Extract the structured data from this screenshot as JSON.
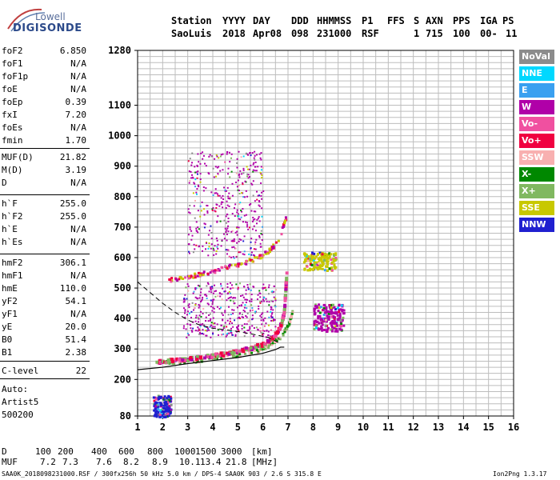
{
  "logo": {
    "top": "Lowell",
    "bottom": "DIGISONDE"
  },
  "header": {
    "row1": [
      "Station",
      "YYYY",
      "DAY",
      "DDD",
      "HHMMSS",
      "P1",
      "FFS",
      "S",
      "AXN",
      "PPS",
      "IGA",
      "PS"
    ],
    "row2": [
      "SaoLuis",
      "2018",
      "Apr08",
      "098",
      "231000",
      "RSF",
      "1",
      "715",
      "100",
      "00-",
      "11"
    ]
  },
  "params": [
    {
      "name": "foF2",
      "value": "6.850"
    },
    {
      "name": "foF1",
      "value": "N/A"
    },
    {
      "name": "foF1p",
      "value": "N/A"
    },
    {
      "name": "foE",
      "value": "N/A"
    },
    {
      "name": "foEp",
      "value": "0.39"
    },
    {
      "name": "fxI",
      "value": "7.20"
    },
    {
      "name": "foEs",
      "value": "N/A"
    },
    {
      "name": "fmin",
      "value": "1.70"
    },
    {
      "name": "MUF(D)",
      "value": "21.82"
    },
    {
      "name": "M(D)",
      "value": "3.19"
    },
    {
      "name": "D",
      "value": "N/A"
    },
    {
      "name": "h`F",
      "value": "255.0"
    },
    {
      "name": "h`F2",
      "value": "255.0"
    },
    {
      "name": "h`E",
      "value": "N/A"
    },
    {
      "name": "h`Es",
      "value": "N/A"
    },
    {
      "name": "hmF2",
      "value": "306.1"
    },
    {
      "name": "hmF1",
      "value": "N/A"
    },
    {
      "name": "hmE",
      "value": "110.0"
    },
    {
      "name": "yF2",
      "value": "54.1"
    },
    {
      "name": "yF1",
      "value": "N/A"
    },
    {
      "name": "yE",
      "value": "20.0"
    },
    {
      "name": "B0",
      "value": "51.4"
    },
    {
      "name": "B1",
      "value": "2.38"
    },
    {
      "name": "C-level",
      "value": "22"
    }
  ],
  "auto": [
    "Auto:",
    "Artist5",
    "500200"
  ],
  "legend": [
    {
      "label": "NoVal",
      "color": "#8c8c8c"
    },
    {
      "label": "NNE",
      "color": "#00d8ff"
    },
    {
      "label": "E",
      "color": "#3aa0f0"
    },
    {
      "label": "W",
      "color": "#b000a8"
    },
    {
      "label": "Vo-",
      "color": "#f050a0"
    },
    {
      "label": "Vo+",
      "color": "#f00040"
    },
    {
      "label": "SSW",
      "color": "#f8b0b0"
    },
    {
      "label": "X-",
      "color": "#008800"
    },
    {
      "label": "X+",
      "color": "#80b860"
    },
    {
      "label": "SSE",
      "color": "#c8c800"
    },
    {
      "label": "NNW",
      "color": "#2020d0"
    }
  ],
  "muf_table": {
    "d_label": "D",
    "muf_label": "MUF",
    "d_values": [
      "100",
      "200",
      "400",
      "600",
      "800",
      "1000",
      "1500",
      "3000"
    ],
    "d_unit": "[km]",
    "muf_values": [
      "7.2",
      "7.3",
      "7.6",
      "8.2",
      "8.9",
      "10.1",
      "13.4",
      "21.8"
    ],
    "muf_unit": "[MHz]"
  },
  "footer": {
    "left": "SAA0K_2018098231000.RSF / 300fx256h 50 kHz 5.0 km / DPS-4 SAA0K 903 / 2.6 S 315.8 E",
    "right": "Ion2Png 1.3.17"
  },
  "chart_data": {
    "type": "scatter",
    "title": "",
    "xlabel": "",
    "ylabel": "",
    "xlim": [
      1,
      16
    ],
    "ylim": [
      80,
      1280
    ],
    "x_ticks": [
      1,
      2,
      3,
      4,
      5,
      6,
      7,
      8,
      9,
      10,
      11,
      12,
      13,
      14,
      15,
      16
    ],
    "y_ticks": [
      80,
      200,
      300,
      400,
      500,
      600,
      700,
      800,
      900,
      1000,
      1100,
      1280
    ],
    "grid": true,
    "trace_o": {
      "x": [
        1.7,
        2.0,
        2.5,
        3.0,
        3.5,
        4.0,
        4.5,
        5.0,
        5.5,
        6.0,
        6.3,
        6.5,
        6.7,
        6.8,
        6.85,
        6.9
      ],
      "y": [
        262,
        264,
        268,
        272,
        278,
        283,
        290,
        298,
        308,
        322,
        338,
        358,
        390,
        430,
        500,
        560
      ]
    },
    "trace_o_multihop": {
      "x": [
        2.2,
        2.8,
        3.4,
        4.0,
        4.6,
        5.2,
        5.8,
        6.2,
        6.6,
        6.9
      ],
      "y": [
        530,
        538,
        548,
        558,
        572,
        586,
        604,
        625,
        660,
        740
      ]
    },
    "trace_x": {
      "x": [
        2.0,
        3.0,
        4.0,
        5.0,
        5.8,
        6.3,
        6.7,
        7.0,
        7.15
      ],
      "y": [
        258,
        262,
        270,
        282,
        298,
        318,
        345,
        385,
        430
      ]
    },
    "profile_solid": {
      "x": [
        1.0,
        2.0,
        3.0,
        4.0,
        5.0,
        6.0,
        6.5,
        6.7,
        6.85
      ],
      "y": [
        232,
        240,
        252,
        262,
        272,
        286,
        298,
        306,
        306
      ]
    },
    "profile_dashed": {
      "x": [
        1.0,
        1.5,
        2.0,
        2.5,
        3.0,
        3.5,
        4.0,
        4.8,
        5.5,
        6.2,
        6.7
      ],
      "y": [
        520,
        485,
        450,
        420,
        395,
        378,
        368,
        360,
        350,
        338,
        318
      ]
    },
    "scatter_patches": [
      {
        "name": "W-cluster-8-9",
        "x": [
          8.0,
          9.2
        ],
        "y": [
          360,
          450
        ],
        "color": "#b000a8"
      },
      {
        "name": "cluster-8-9-top",
        "x": [
          7.6,
          8.9
        ],
        "y": [
          560,
          620
        ],
        "color": "#c8c800"
      },
      {
        "name": "NNW-low",
        "x": [
          1.6,
          2.3
        ],
        "y": [
          80,
          150
        ],
        "color": "#2020d0"
      },
      {
        "name": "spread-F-upper",
        "x": [
          3.0,
          6.0
        ],
        "y": [
          600,
          950
        ],
        "color": "#b000a8"
      },
      {
        "name": "spread-F-lower",
        "x": [
          2.8,
          6.5
        ],
        "y": [
          340,
          520
        ],
        "color": "#b000a8"
      }
    ]
  }
}
